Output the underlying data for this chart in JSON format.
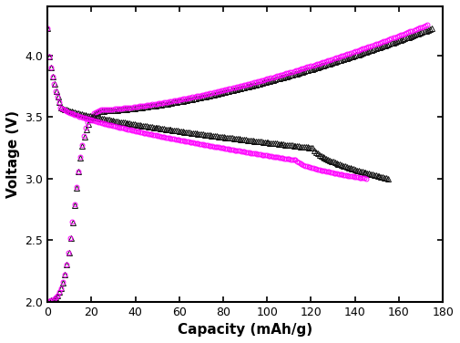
{
  "xlabel": "Capacity (mAh/g)",
  "ylabel": "Voltage (V)",
  "xlim": [
    0,
    180
  ],
  "ylim": [
    2.0,
    4.4
  ],
  "xticks": [
    0,
    20,
    40,
    60,
    80,
    100,
    120,
    140,
    160,
    180
  ],
  "yticks": [
    2.0,
    2.5,
    3.0,
    3.5,
    4.0
  ],
  "circle_color": "#FF00FF",
  "triangle_color": "#111111",
  "markersize_circle": 3.5,
  "markersize_triangle": 4.0
}
